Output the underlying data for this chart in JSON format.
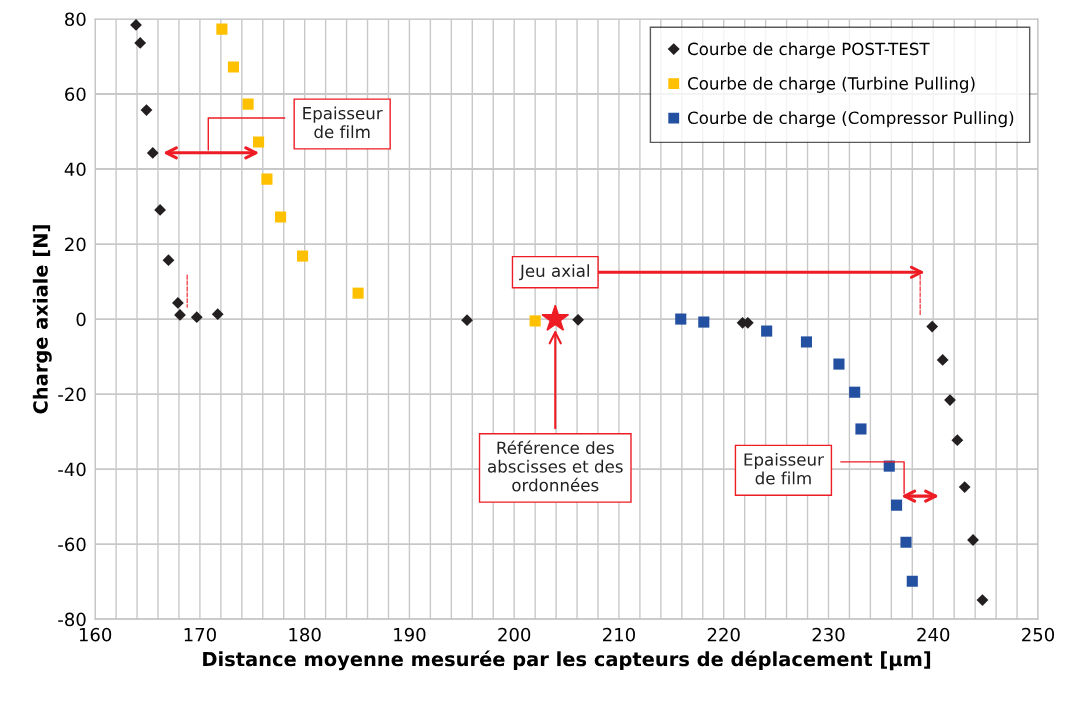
{
  "chart_data": {
    "type": "scatter",
    "xlabel": "Distance moyenne mesurée par les capteurs de déplacement [µm]",
    "ylabel": "Charge axiale [N]",
    "series": [
      {
        "name": "Courbe de charge POST-TEST",
        "color": "#231f20",
        "marker": "diamond",
        "x": [
          163.9,
          164.3,
          164.9,
          165.5,
          166.2,
          167.0,
          167.9,
          168.1,
          169.7,
          171.7,
          195.5,
          206.1,
          221.8,
          222.3,
          239.9,
          240.9,
          241.6,
          242.3,
          243.0,
          243.8,
          244.7
        ],
        "values": [
          78.4,
          73.6,
          55.7,
          44.3,
          29.1,
          15.7,
          4.3,
          1.1,
          0.5,
          1.3,
          -0.3,
          -0.2,
          -1.0,
          -1.0,
          -2.0,
          -10.9,
          -21.6,
          -32.3,
          -44.8,
          -58.9,
          -74.9
        ]
      },
      {
        "name": "Courbe de charge (Turbine Pulling)",
        "color": "#ffc000",
        "marker": "square",
        "x": [
          172.1,
          173.2,
          174.6,
          175.6,
          176.4,
          177.7,
          179.8,
          185.1,
          202.0
        ],
        "values": [
          77.3,
          67.2,
          57.3,
          47.2,
          37.3,
          27.2,
          16.8,
          6.9,
          -0.5
        ]
      },
      {
        "name": "Courbe de charge (Compressor Pulling)",
        "color": "#2350a0",
        "marker": "square",
        "x": [
          215.9,
          218.1,
          224.1,
          227.9,
          231.0,
          232.5,
          233.1,
          235.8,
          236.5,
          237.4,
          238.0
        ],
        "values": [
          0,
          -0.8,
          -3.2,
          -6.1,
          -12,
          -19.5,
          -29.3,
          -39.2,
          -49.6,
          -59.5,
          -69.9
        ]
      }
    ],
    "annotations": [
      "Epaisseur\nde film",
      "Jeu axial",
      "Epaisseur\nde film",
      "Référence des\nabscisses et des\nordonnées"
    ],
    "xlim": [
      160,
      250
    ],
    "xticks": [
      160,
      170,
      180,
      190,
      200,
      210,
      220,
      230,
      240,
      250
    ],
    "ylim": [
      -80,
      80
    ],
    "yticks": [
      -80,
      -60,
      -40,
      -20,
      0,
      20,
      40,
      60,
      80
    ],
    "grid": true,
    "legend": "top right"
  }
}
